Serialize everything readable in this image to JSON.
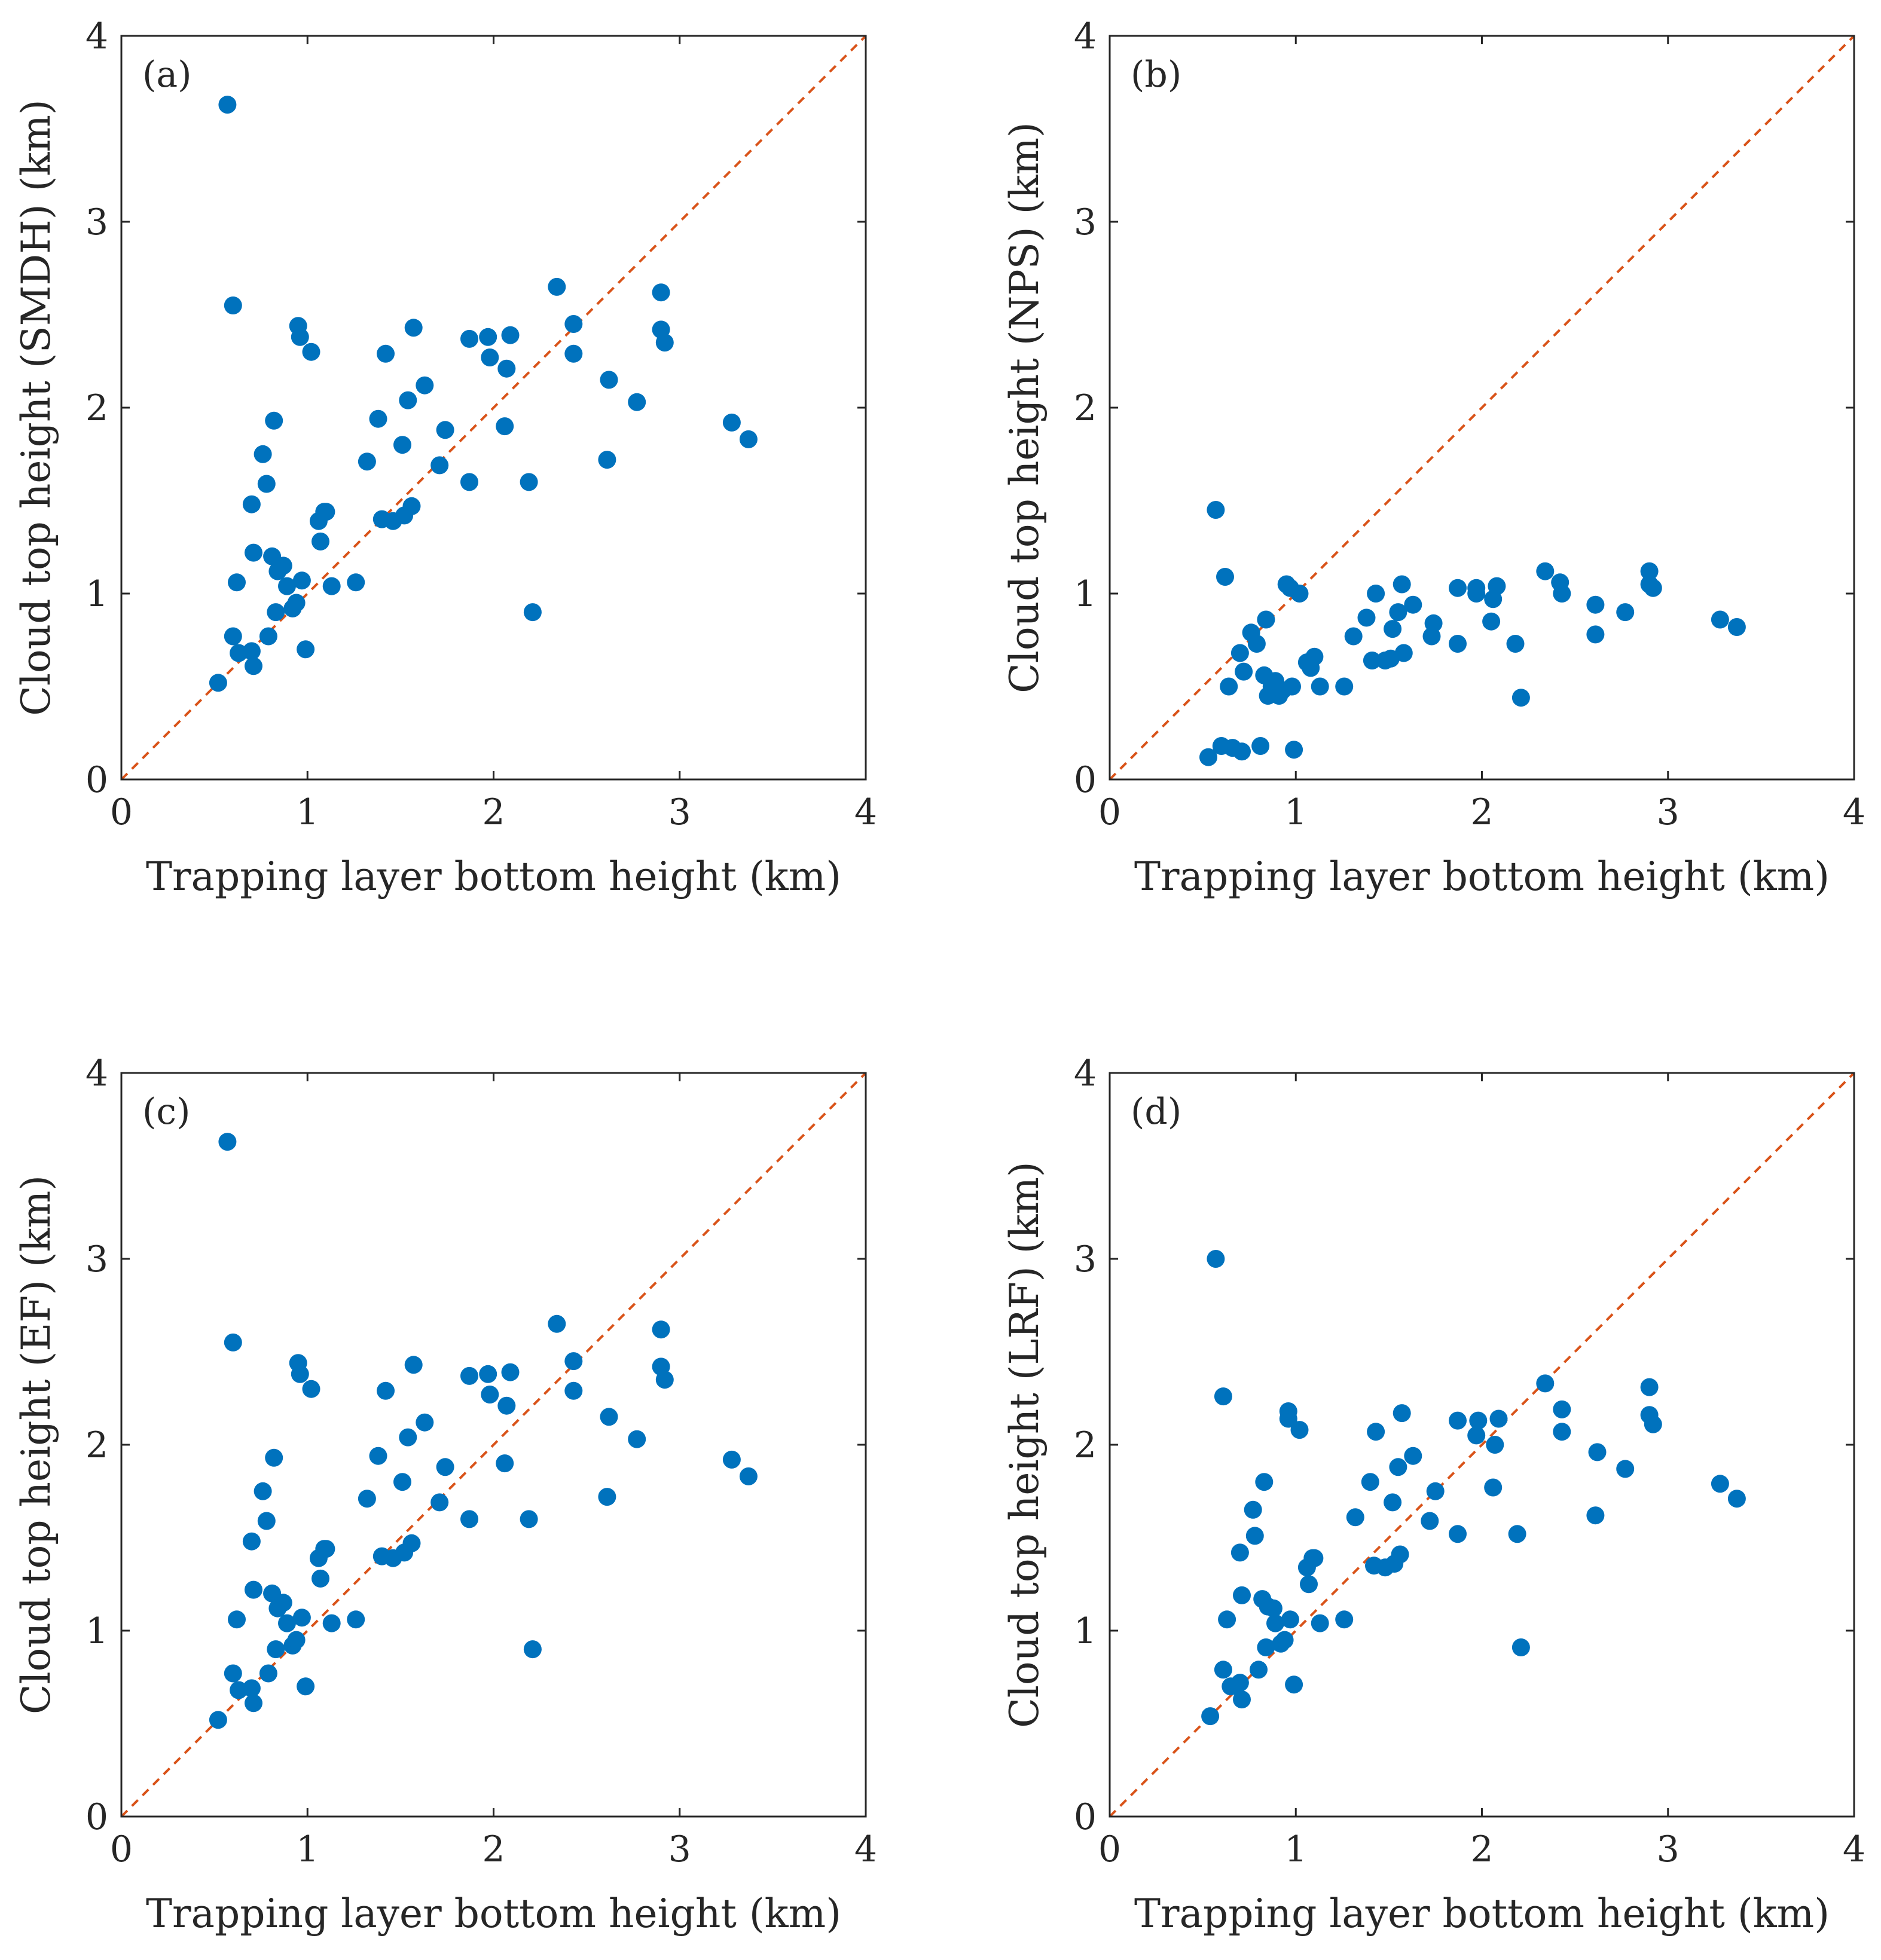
{
  "chart_data": [
    {
      "type": "scatter",
      "panel_label": "(a)",
      "xlabel": "Trapping layer bottom height (km)",
      "ylabel": "Cloud top height (SMDH) (km)",
      "xlim": [
        0,
        4
      ],
      "ylim": [
        0,
        4
      ],
      "xticks": [
        "0",
        "1",
        "2",
        "3",
        "4"
      ],
      "yticks": [
        "0",
        "1",
        "2",
        "3",
        "4"
      ],
      "reference_line": "y = x",
      "points": [
        [
          0.52,
          0.52
        ],
        [
          0.57,
          3.63
        ],
        [
          0.6,
          0.77
        ],
        [
          0.6,
          2.55
        ],
        [
          0.62,
          1.06
        ],
        [
          0.63,
          0.68
        ],
        [
          0.7,
          0.69
        ],
        [
          0.7,
          1.48
        ],
        [
          0.71,
          1.22
        ],
        [
          0.71,
          0.61
        ],
        [
          0.76,
          1.75
        ],
        [
          0.78,
          1.59
        ],
        [
          0.79,
          0.77
        ],
        [
          0.81,
          1.2
        ],
        [
          0.82,
          1.93
        ],
        [
          0.83,
          0.9
        ],
        [
          0.84,
          1.12
        ],
        [
          0.87,
          1.15
        ],
        [
          0.89,
          1.04
        ],
        [
          0.92,
          0.92
        ],
        [
          0.94,
          0.95
        ],
        [
          0.95,
          2.44
        ],
        [
          0.96,
          2.38
        ],
        [
          0.97,
          1.07
        ],
        [
          0.99,
          0.7
        ],
        [
          1.02,
          2.3
        ],
        [
          1.06,
          1.39
        ],
        [
          1.07,
          1.28
        ],
        [
          1.09,
          1.44
        ],
        [
          1.1,
          1.44
        ],
        [
          1.13,
          1.04
        ],
        [
          1.26,
          1.06
        ],
        [
          1.32,
          1.71
        ],
        [
          1.38,
          1.94
        ],
        [
          1.4,
          1.4
        ],
        [
          1.42,
          2.29
        ],
        [
          1.46,
          1.39
        ],
        [
          1.51,
          1.8
        ],
        [
          1.52,
          1.42
        ],
        [
          1.54,
          2.04
        ],
        [
          1.56,
          1.47
        ],
        [
          1.57,
          2.43
        ],
        [
          1.63,
          2.12
        ],
        [
          1.71,
          1.69
        ],
        [
          1.74,
          1.88
        ],
        [
          1.87,
          1.6
        ],
        [
          1.87,
          2.37
        ],
        [
          1.97,
          2.38
        ],
        [
          1.98,
          2.27
        ],
        [
          2.06,
          1.9
        ],
        [
          2.07,
          2.21
        ],
        [
          2.09,
          2.39
        ],
        [
          2.19,
          1.6
        ],
        [
          2.21,
          0.9
        ],
        [
          2.34,
          2.65
        ],
        [
          2.43,
          2.45
        ],
        [
          2.43,
          2.29
        ],
        [
          2.61,
          1.72
        ],
        [
          2.62,
          2.15
        ],
        [
          2.77,
          2.03
        ],
        [
          2.9,
          2.62
        ],
        [
          2.9,
          2.42
        ],
        [
          2.92,
          2.35
        ],
        [
          3.28,
          1.92
        ],
        [
          3.37,
          1.83
        ]
      ]
    },
    {
      "type": "scatter",
      "panel_label": "(b)",
      "xlabel": "Trapping layer bottom height (km)",
      "ylabel": "Cloud top height (NPS) (km)",
      "xlim": [
        0,
        4
      ],
      "ylim": [
        0,
        4
      ],
      "xticks": [
        "0",
        "1",
        "2",
        "3",
        "4"
      ],
      "yticks": [
        "0",
        "1",
        "2",
        "3",
        "4"
      ],
      "reference_line": "y = x",
      "points": [
        [
          0.53,
          0.12
        ],
        [
          0.57,
          1.45
        ],
        [
          0.6,
          0.18
        ],
        [
          0.62,
          1.09
        ],
        [
          0.64,
          0.5
        ],
        [
          0.66,
          0.17
        ],
        [
          0.7,
          0.68
        ],
        [
          0.71,
          0.15
        ],
        [
          0.72,
          0.58
        ],
        [
          0.76,
          0.79
        ],
        [
          0.79,
          0.73
        ],
        [
          0.81,
          0.18
        ],
        [
          0.83,
          0.56
        ],
        [
          0.84,
          0.86
        ],
        [
          0.85,
          0.45
        ],
        [
          0.87,
          0.5
        ],
        [
          0.89,
          0.53
        ],
        [
          0.91,
          0.45
        ],
        [
          0.93,
          0.48
        ],
        [
          0.95,
          1.05
        ],
        [
          0.97,
          1.03
        ],
        [
          0.98,
          0.5
        ],
        [
          0.99,
          0.16
        ],
        [
          1.02,
          1.0
        ],
        [
          1.06,
          0.63
        ],
        [
          1.08,
          0.6
        ],
        [
          1.1,
          0.66
        ],
        [
          1.13,
          0.5
        ],
        [
          1.26,
          0.5
        ],
        [
          1.31,
          0.77
        ],
        [
          1.38,
          0.87
        ],
        [
          1.41,
          0.64
        ],
        [
          1.43,
          1.0
        ],
        [
          1.48,
          0.64
        ],
        [
          1.51,
          0.65
        ],
        [
          1.52,
          0.81
        ],
        [
          1.55,
          0.9
        ],
        [
          1.57,
          1.05
        ],
        [
          1.58,
          0.68
        ],
        [
          1.63,
          0.94
        ],
        [
          1.73,
          0.77
        ],
        [
          1.74,
          0.84
        ],
        [
          1.87,
          1.03
        ],
        [
          1.87,
          0.73
        ],
        [
          1.97,
          1.0
        ],
        [
          1.97,
          1.03
        ],
        [
          2.05,
          0.85
        ],
        [
          2.06,
          0.97
        ],
        [
          2.08,
          1.04
        ],
        [
          2.18,
          0.73
        ],
        [
          2.21,
          0.44
        ],
        [
          2.34,
          1.12
        ],
        [
          2.42,
          1.06
        ],
        [
          2.43,
          1.0
        ],
        [
          2.61,
          0.94
        ],
        [
          2.61,
          0.78
        ],
        [
          2.77,
          0.9
        ],
        [
          2.9,
          1.12
        ],
        [
          2.9,
          1.05
        ],
        [
          2.92,
          1.03
        ],
        [
          3.28,
          0.86
        ],
        [
          3.37,
          0.82
        ]
      ]
    },
    {
      "type": "scatter",
      "panel_label": "(c)",
      "xlabel": "Trapping layer bottom height (km)",
      "ylabel": "Cloud top height (EF) (km)",
      "xlim": [
        0,
        4
      ],
      "ylim": [
        0,
        4
      ],
      "xticks": [
        "0",
        "1",
        "2",
        "3",
        "4"
      ],
      "yticks": [
        "0",
        "1",
        "2",
        "3",
        "4"
      ],
      "reference_line": "y = x",
      "points": [
        [
          0.52,
          0.52
        ],
        [
          0.57,
          3.63
        ],
        [
          0.6,
          0.77
        ],
        [
          0.6,
          2.55
        ],
        [
          0.62,
          1.06
        ],
        [
          0.63,
          0.68
        ],
        [
          0.7,
          0.69
        ],
        [
          0.7,
          1.48
        ],
        [
          0.71,
          1.22
        ],
        [
          0.71,
          0.61
        ],
        [
          0.76,
          1.75
        ],
        [
          0.78,
          1.59
        ],
        [
          0.79,
          0.77
        ],
        [
          0.81,
          1.2
        ],
        [
          0.82,
          1.93
        ],
        [
          0.83,
          0.9
        ],
        [
          0.84,
          1.12
        ],
        [
          0.87,
          1.15
        ],
        [
          0.89,
          1.04
        ],
        [
          0.92,
          0.92
        ],
        [
          0.94,
          0.95
        ],
        [
          0.95,
          2.44
        ],
        [
          0.96,
          2.38
        ],
        [
          0.97,
          1.07
        ],
        [
          0.99,
          0.7
        ],
        [
          1.02,
          2.3
        ],
        [
          1.06,
          1.39
        ],
        [
          1.07,
          1.28
        ],
        [
          1.09,
          1.44
        ],
        [
          1.1,
          1.44
        ],
        [
          1.13,
          1.04
        ],
        [
          1.26,
          1.06
        ],
        [
          1.32,
          1.71
        ],
        [
          1.38,
          1.94
        ],
        [
          1.4,
          1.4
        ],
        [
          1.42,
          2.29
        ],
        [
          1.46,
          1.39
        ],
        [
          1.51,
          1.8
        ],
        [
          1.52,
          1.42
        ],
        [
          1.54,
          2.04
        ],
        [
          1.56,
          1.47
        ],
        [
          1.57,
          2.43
        ],
        [
          1.63,
          2.12
        ],
        [
          1.71,
          1.69
        ],
        [
          1.74,
          1.88
        ],
        [
          1.87,
          1.6
        ],
        [
          1.87,
          2.37
        ],
        [
          1.97,
          2.38
        ],
        [
          1.98,
          2.27
        ],
        [
          2.06,
          1.9
        ],
        [
          2.07,
          2.21
        ],
        [
          2.09,
          2.39
        ],
        [
          2.19,
          1.6
        ],
        [
          2.21,
          0.9
        ],
        [
          2.34,
          2.65
        ],
        [
          2.43,
          2.45
        ],
        [
          2.43,
          2.29
        ],
        [
          2.61,
          1.72
        ],
        [
          2.62,
          2.15
        ],
        [
          2.77,
          2.03
        ],
        [
          2.9,
          2.62
        ],
        [
          2.9,
          2.42
        ],
        [
          2.92,
          2.35
        ],
        [
          3.28,
          1.92
        ],
        [
          3.37,
          1.83
        ]
      ]
    },
    {
      "type": "scatter",
      "panel_label": "(d)",
      "xlabel": "Trapping layer bottom height (km)",
      "ylabel": "Cloud top height (LRF) (km)",
      "xlim": [
        0,
        4
      ],
      "ylim": [
        0,
        4
      ],
      "xticks": [
        "0",
        "1",
        "2",
        "3",
        "4"
      ],
      "yticks": [
        "0",
        "1",
        "2",
        "3",
        "4"
      ],
      "reference_line": "y = x",
      "points": [
        [
          0.54,
          0.54
        ],
        [
          0.57,
          3.0
        ],
        [
          0.61,
          0.79
        ],
        [
          0.61,
          2.26
        ],
        [
          0.63,
          1.06
        ],
        [
          0.65,
          0.7
        ],
        [
          0.7,
          0.72
        ],
        [
          0.7,
          1.42
        ],
        [
          0.71,
          1.19
        ],
        [
          0.71,
          0.63
        ],
        [
          0.77,
          1.65
        ],
        [
          0.78,
          1.51
        ],
        [
          0.8,
          0.79
        ],
        [
          0.82,
          1.17
        ],
        [
          0.83,
          1.8
        ],
        [
          0.84,
          0.91
        ],
        [
          0.85,
          1.13
        ],
        [
          0.88,
          1.12
        ],
        [
          0.89,
          1.04
        ],
        [
          0.92,
          0.93
        ],
        [
          0.94,
          0.95
        ],
        [
          0.96,
          2.18
        ],
        [
          0.96,
          2.14
        ],
        [
          0.97,
          1.06
        ],
        [
          0.99,
          0.71
        ],
        [
          1.02,
          2.08
        ],
        [
          1.06,
          1.34
        ],
        [
          1.07,
          1.25
        ],
        [
          1.09,
          1.39
        ],
        [
          1.1,
          1.39
        ],
        [
          1.13,
          1.04
        ],
        [
          1.26,
          1.06
        ],
        [
          1.32,
          1.61
        ],
        [
          1.4,
          1.8
        ],
        [
          1.42,
          1.35
        ],
        [
          1.43,
          2.07
        ],
        [
          1.48,
          1.34
        ],
        [
          1.52,
          1.69
        ],
        [
          1.53,
          1.36
        ],
        [
          1.55,
          1.88
        ],
        [
          1.56,
          1.41
        ],
        [
          1.57,
          2.17
        ],
        [
          1.63,
          1.94
        ],
        [
          1.72,
          1.59
        ],
        [
          1.75,
          1.75
        ],
        [
          1.87,
          1.52
        ],
        [
          1.87,
          2.13
        ],
        [
          1.97,
          2.05
        ],
        [
          1.98,
          2.13
        ],
        [
          2.06,
          1.77
        ],
        [
          2.07,
          2.0
        ],
        [
          2.09,
          2.14
        ],
        [
          2.19,
          1.52
        ],
        [
          2.21,
          0.91
        ],
        [
          2.34,
          2.33
        ],
        [
          2.43,
          2.19
        ],
        [
          2.43,
          2.07
        ],
        [
          2.61,
          1.62
        ],
        [
          2.62,
          1.96
        ],
        [
          2.77,
          1.87
        ],
        [
          2.9,
          2.31
        ],
        [
          2.9,
          2.16
        ],
        [
          2.92,
          2.11
        ],
        [
          3.28,
          1.79
        ],
        [
          3.37,
          1.71
        ]
      ]
    }
  ]
}
